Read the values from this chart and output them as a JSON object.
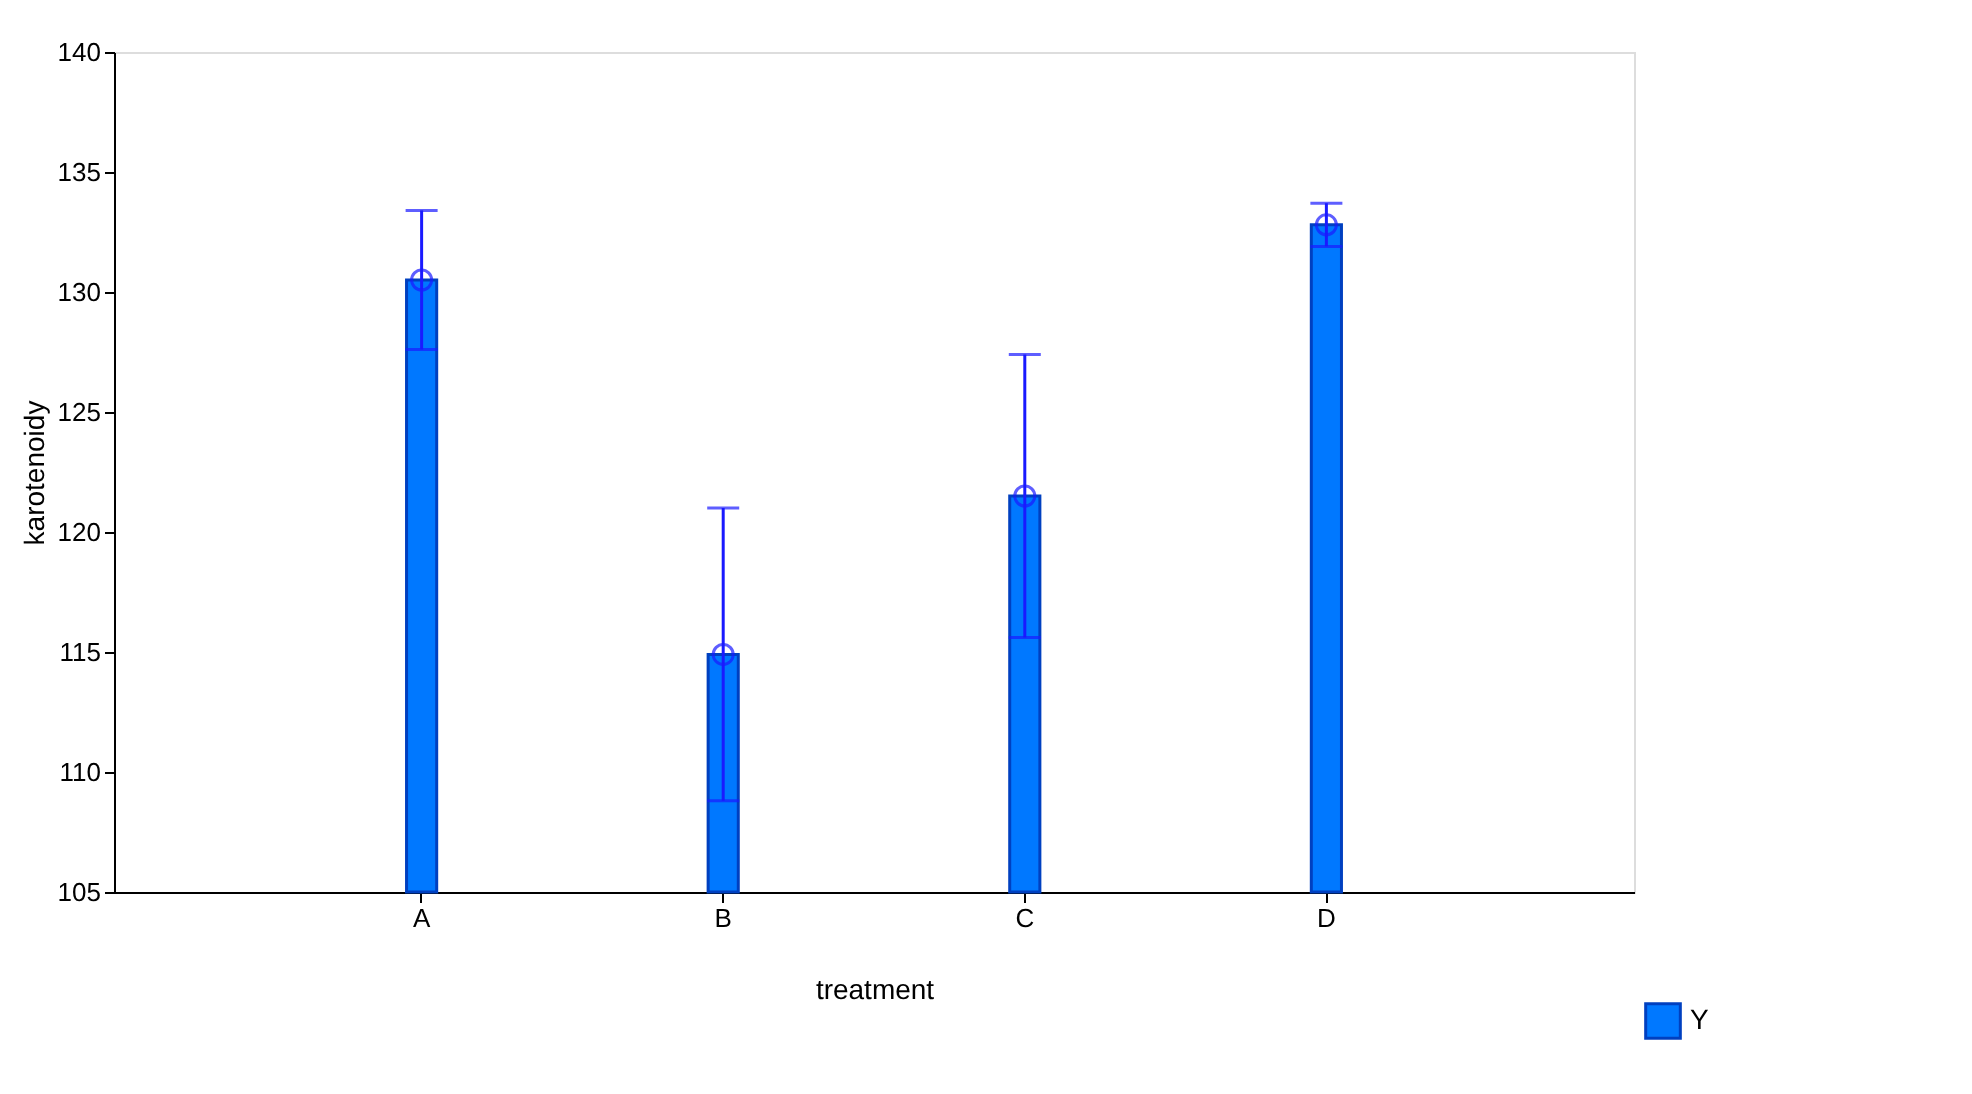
{
  "chart_data": {
    "type": "bar",
    "xlabel": "treatment",
    "ylabel": "karotenoidy",
    "categories": [
      "A",
      "B",
      "C",
      "D"
    ],
    "series": [
      {
        "name": "Y",
        "color": "#0078ff",
        "values": [
          130.5,
          114.9,
          121.5,
          132.8
        ],
        "errors": [
          2.9,
          6.1,
          5.9,
          0.9
        ]
      },
      {
        "type": "scatter",
        "x": [
          "A",
          "B",
          "C",
          "D"
        ],
        "color": "#1a1aff",
        "values": [
          130.5,
          114.9,
          121.5,
          132.8
        ]
      }
    ],
    "ylim": [
      105,
      140
    ],
    "yticks": [
      105,
      110,
      115,
      120,
      125,
      130,
      135,
      140
    ],
    "grid": false,
    "legend": "bottom right",
    "marker": "circle"
  }
}
